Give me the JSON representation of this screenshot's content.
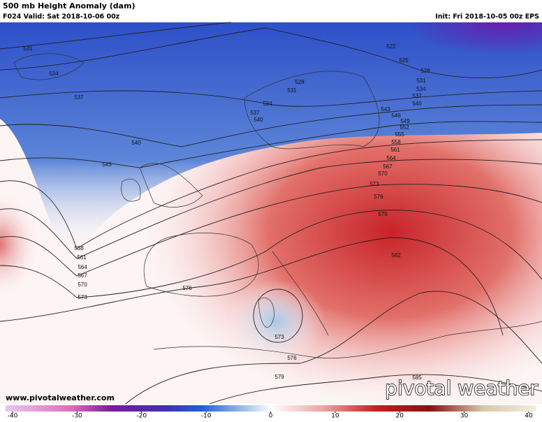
{
  "header": {
    "title": "500 mb Height Anomaly (dam)",
    "valid": "F024 Valid: Sat 2018-10-06 00z",
    "init": "Init: Fri 2018-10-05 00z EPS"
  },
  "contour_labels": [
    "531",
    "534",
    "537",
    "540",
    "543",
    "558",
    "561",
    "564",
    "567",
    "570",
    "573",
    "576",
    "573",
    "576",
    "579",
    "585",
    "582",
    "579",
    "576",
    "573",
    "570",
    "567",
    "564",
    "561",
    "558",
    "555",
    "552",
    "549",
    "546",
    "543",
    "540",
    "537",
    "534",
    "531",
    "528",
    "525",
    "522",
    "528",
    "531",
    "534",
    "537",
    "540"
  ],
  "colorbar": {
    "ticks": [
      -40,
      -30,
      -20,
      -10,
      0,
      10,
      20,
      30,
      40
    ]
  },
  "watermark": "www.pivotalweather.com",
  "logo": "pivotal weather"
}
